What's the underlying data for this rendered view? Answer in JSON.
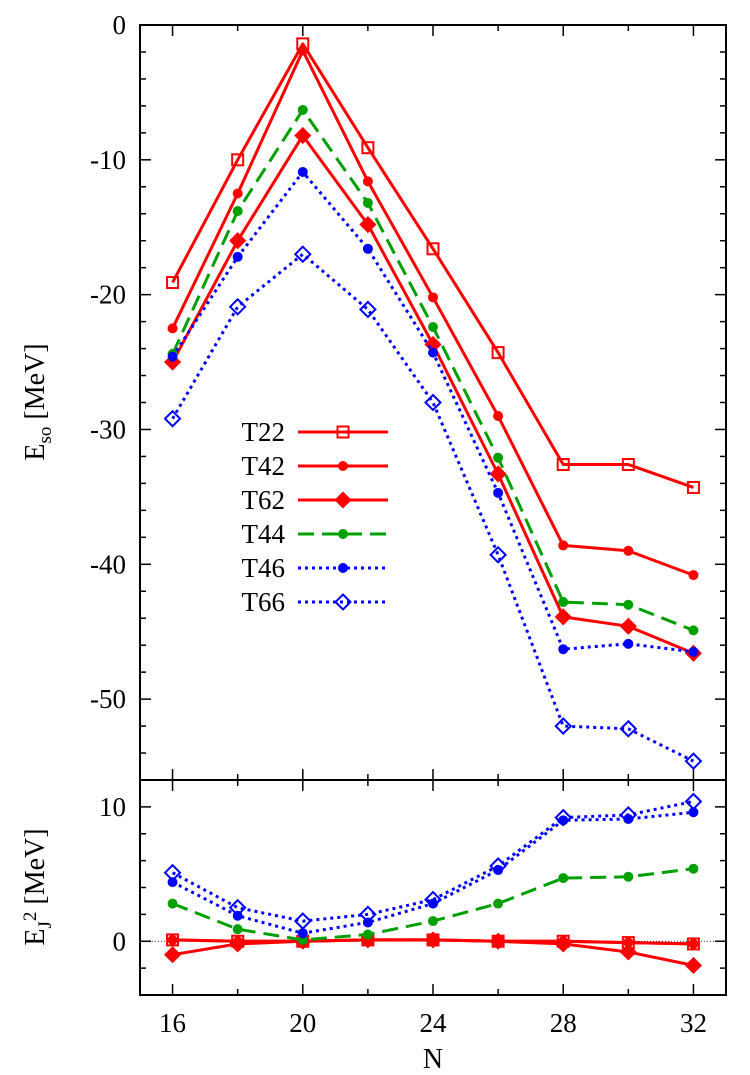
{
  "chart_data": [
    {
      "type": "line",
      "x": [
        16,
        18,
        20,
        22,
        24,
        26,
        28,
        30,
        32
      ],
      "ylabel": "E",
      "ylabel_sub": "so",
      "ylabel_unit": "[MeV]",
      "xlim": [
        15,
        33
      ],
      "ylim": [
        -56,
        0
      ],
      "yticks": [
        0,
        -10,
        -20,
        -30,
        -40,
        -50
      ],
      "legend_position": "center-left",
      "series": [
        {
          "name": "T22",
          "color": "#ff0000",
          "dash": "solid",
          "marker": "square-open",
          "values": [
            -19.1,
            -10.0,
            -1.4,
            -9.1,
            -16.6,
            -24.3,
            -32.6,
            -32.6,
            -34.3
          ]
        },
        {
          "name": "T42",
          "color": "#ff0000",
          "dash": "solid",
          "marker": "circle",
          "values": [
            -22.5,
            -12.5,
            -1.9,
            -11.6,
            -20.2,
            -29.0,
            -38.6,
            -39.0,
            -40.8
          ]
        },
        {
          "name": "T62",
          "color": "#ff0000",
          "dash": "solid",
          "marker": "diamond",
          "values": [
            -25.0,
            -16.0,
            -8.2,
            -14.8,
            -23.7,
            -33.3,
            -43.9,
            -44.6,
            -46.6
          ]
        },
        {
          "name": "T44",
          "color": "#00a000",
          "dash": "dashed",
          "marker": "circle",
          "values": [
            -24.4,
            -13.8,
            -6.3,
            -13.2,
            -22.4,
            -32.1,
            -42.8,
            -43.0,
            -44.9
          ]
        },
        {
          "name": "T46",
          "color": "#0000ff",
          "dash": "dotted",
          "marker": "circle",
          "values": [
            -24.6,
            -17.2,
            -10.9,
            -16.6,
            -24.3,
            -34.7,
            -46.3,
            -45.9,
            -46.5
          ]
        },
        {
          "name": "T66",
          "color": "#0000ff",
          "dash": "dotted",
          "marker": "diamond-open",
          "values": [
            -29.2,
            -20.9,
            -17.0,
            -21.1,
            -28.0,
            -39.3,
            -52.0,
            -52.2,
            -54.6
          ]
        }
      ]
    },
    {
      "type": "line",
      "x": [
        16,
        18,
        20,
        22,
        24,
        26,
        28,
        30,
        32
      ],
      "xlabel": "N",
      "xticks": [
        16,
        20,
        24,
        28,
        32
      ],
      "ylabel": "E",
      "ylabel_sub": "J",
      "ylabel_sup": "2",
      "ylabel_unit": "[MeV]",
      "xlim": [
        15,
        33
      ],
      "ylim": [
        -4,
        12
      ],
      "yticks": [
        10,
        0
      ],
      "zero_line": true,
      "series": [
        {
          "name": "T22",
          "color": "#ff0000",
          "dash": "solid",
          "marker": "square-open",
          "values": [
            0.1,
            0.0,
            0.0,
            0.1,
            0.1,
            0.0,
            0.0,
            -0.1,
            -0.2
          ]
        },
        {
          "name": "T42",
          "color": "#ff0000",
          "dash": "solid",
          "marker": "circle",
          "values": [
            0.1,
            0.0,
            0.0,
            0.1,
            0.1,
            0.0,
            0.0,
            -0.1,
            -0.2
          ]
        },
        {
          "name": "T62",
          "color": "#ff0000",
          "dash": "solid",
          "marker": "diamond",
          "values": [
            -1.0,
            -0.2,
            0.0,
            0.1,
            0.1,
            0.0,
            -0.2,
            -0.8,
            -1.8
          ]
        },
        {
          "name": "T44",
          "color": "#00a000",
          "dash": "dashed",
          "marker": "circle",
          "values": [
            2.8,
            0.9,
            0.1,
            0.5,
            1.5,
            2.8,
            4.7,
            4.8,
            5.4
          ]
        },
        {
          "name": "T46",
          "color": "#0000ff",
          "dash": "dotted",
          "marker": "circle",
          "values": [
            4.4,
            1.9,
            0.6,
            1.4,
            2.8,
            5.3,
            9.0,
            9.1,
            9.6
          ]
        },
        {
          "name": "T66",
          "color": "#0000ff",
          "dash": "dotted",
          "marker": "diamond-open",
          "values": [
            5.1,
            2.5,
            1.5,
            2.0,
            3.1,
            5.6,
            9.2,
            9.4,
            10.4
          ]
        }
      ]
    }
  ]
}
